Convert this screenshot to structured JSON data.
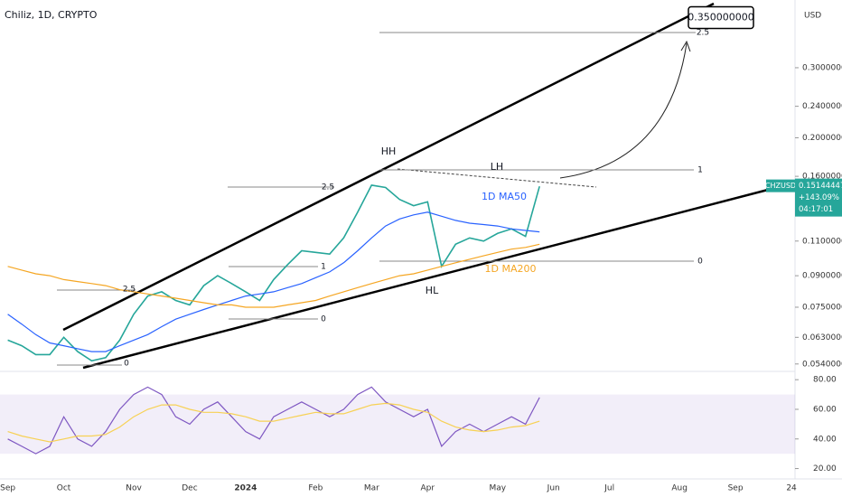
{
  "chart_data": {
    "type": "line",
    "title": "Chiliz, 1D, CRYPTO",
    "currency": "USD",
    "categories": [
      "Sep",
      null,
      null,
      null,
      "Oct",
      null,
      null,
      null,
      null,
      "Nov",
      null,
      null,
      null,
      "Dec",
      null,
      null,
      null,
      "2024",
      null,
      null,
      null,
      null,
      "Feb",
      null,
      null,
      null,
      "Mar",
      null,
      null,
      null,
      "Apr",
      null,
      null,
      null,
      null,
      "May",
      null,
      null,
      null,
      "Jun",
      null,
      null,
      null,
      "Jul",
      null,
      null,
      null,
      null,
      "Aug",
      null,
      null,
      null,
      "Sep",
      null,
      null,
      null,
      "24"
    ],
    "log_scale": true,
    "ylim": [
      0.052,
      0.444
    ],
    "yticks": [
      {
        "value": 0.3,
        "label": "0.300000000"
      },
      {
        "value": 0.24,
        "label": "0.240000000"
      },
      {
        "value": 0.2,
        "label": "0.200000000"
      },
      {
        "value": 0.16,
        "label": "0.160000000"
      },
      {
        "value": 0.11,
        "label": "0.110000000"
      },
      {
        "value": 0.09,
        "label": "0.090000000"
      },
      {
        "value": 0.075,
        "label": "0.075000000"
      },
      {
        "value": 0.063,
        "label": "0.063000000"
      },
      {
        "value": 0.054,
        "label": "0.054000000"
      }
    ],
    "y2lim": [
      13,
      85
    ],
    "y2ticks": [
      {
        "value": 80,
        "label": "80.00"
      },
      {
        "value": 60,
        "label": "60.00"
      },
      {
        "value": 40,
        "label": "40.00"
      },
      {
        "value": 20,
        "label": "20.00"
      }
    ],
    "y2_band": [
      30,
      70
    ],
    "series": [
      {
        "name": "CHZUSD",
        "color": "#26a69a",
        "values": [
          0.062,
          0.06,
          0.057,
          0.057,
          0.063,
          0.058,
          0.055,
          0.056,
          0.062,
          0.072,
          0.08,
          0.082,
          0.078,
          0.076,
          0.085,
          0.09,
          0.086,
          0.082,
          0.078,
          0.088,
          0.096,
          0.104,
          0.103,
          0.102,
          0.112,
          0.13,
          0.152,
          0.15,
          0.14,
          0.135,
          0.138,
          0.095,
          0.108,
          0.112,
          0.11,
          0.115,
          0.118,
          0.113,
          0.151,
          null,
          null,
          null,
          null,
          null,
          null,
          null,
          null,
          null,
          null,
          null,
          null,
          null,
          null,
          null,
          null,
          null,
          null
        ]
      },
      {
        "name": "1D MA50",
        "color": "#2962ff",
        "values": [
          0.072,
          0.068,
          0.064,
          0.061,
          0.06,
          0.059,
          0.058,
          0.058,
          0.06,
          0.062,
          0.064,
          0.067,
          0.07,
          0.072,
          0.074,
          0.076,
          0.078,
          0.08,
          0.081,
          0.082,
          0.084,
          0.086,
          0.089,
          0.092,
          0.097,
          0.104,
          0.112,
          0.12,
          0.125,
          0.128,
          0.13,
          0.127,
          0.124,
          0.122,
          0.121,
          0.12,
          0.118,
          0.117,
          0.116,
          null,
          null,
          null,
          null,
          null,
          null,
          null,
          null,
          null,
          null,
          null,
          null,
          null,
          null,
          null,
          null,
          null,
          null
        ]
      },
      {
        "name": "1D MA200",
        "color": "#f5a623",
        "values": [
          0.095,
          0.093,
          0.091,
          0.09,
          0.088,
          0.087,
          0.086,
          0.085,
          0.083,
          0.082,
          0.081,
          0.08,
          0.079,
          0.078,
          0.077,
          0.076,
          0.076,
          0.075,
          0.075,
          0.075,
          0.076,
          0.077,
          0.078,
          0.08,
          0.082,
          0.084,
          0.086,
          0.088,
          0.09,
          0.091,
          0.093,
          0.095,
          0.097,
          0.099,
          0.101,
          0.103,
          0.105,
          0.106,
          0.108,
          null,
          null,
          null,
          null,
          null,
          null,
          null,
          null,
          null,
          null,
          null,
          null,
          null,
          null,
          null,
          null,
          null,
          null
        ]
      },
      {
        "axis": "y2",
        "color": "#7e57c2",
        "values": [
          40,
          35,
          30,
          35,
          55,
          40,
          35,
          45,
          60,
          70,
          75,
          70,
          55,
          50,
          60,
          65,
          55,
          45,
          40,
          55,
          60,
          65,
          60,
          55,
          60,
          70,
          75,
          65,
          60,
          55,
          60,
          35,
          45,
          50,
          45,
          50,
          55,
          50,
          68,
          null,
          null,
          null,
          null,
          null,
          null,
          null,
          null,
          null,
          null,
          null,
          null,
          null,
          null,
          null,
          null,
          null,
          null
        ]
      },
      {
        "axis": "y2",
        "color": "#f7d154",
        "values": [
          45,
          42,
          40,
          38,
          40,
          42,
          42,
          43,
          48,
          55,
          60,
          63,
          63,
          60,
          58,
          58,
          57,
          55,
          52,
          52,
          54,
          56,
          58,
          57,
          57,
          60,
          63,
          64,
          63,
          60,
          58,
          52,
          48,
          46,
          45,
          46,
          48,
          49,
          52,
          null,
          null,
          null,
          null,
          null,
          null,
          null,
          null,
          null,
          null,
          null,
          null,
          null,
          null,
          null,
          null,
          null,
          null
        ]
      }
    ],
    "target": {
      "value": 0.35,
      "label": "0.350000000"
    },
    "last_price": 0.151444476,
    "change": "+143.09%",
    "countdown": "04:17:01",
    "annotations": [
      "HH",
      "LH",
      "HL",
      "1D MA50",
      "1D MA200",
      "2.5",
      "1",
      "0",
      "2.5",
      "1",
      "0",
      "0",
      "2.5"
    ]
  }
}
